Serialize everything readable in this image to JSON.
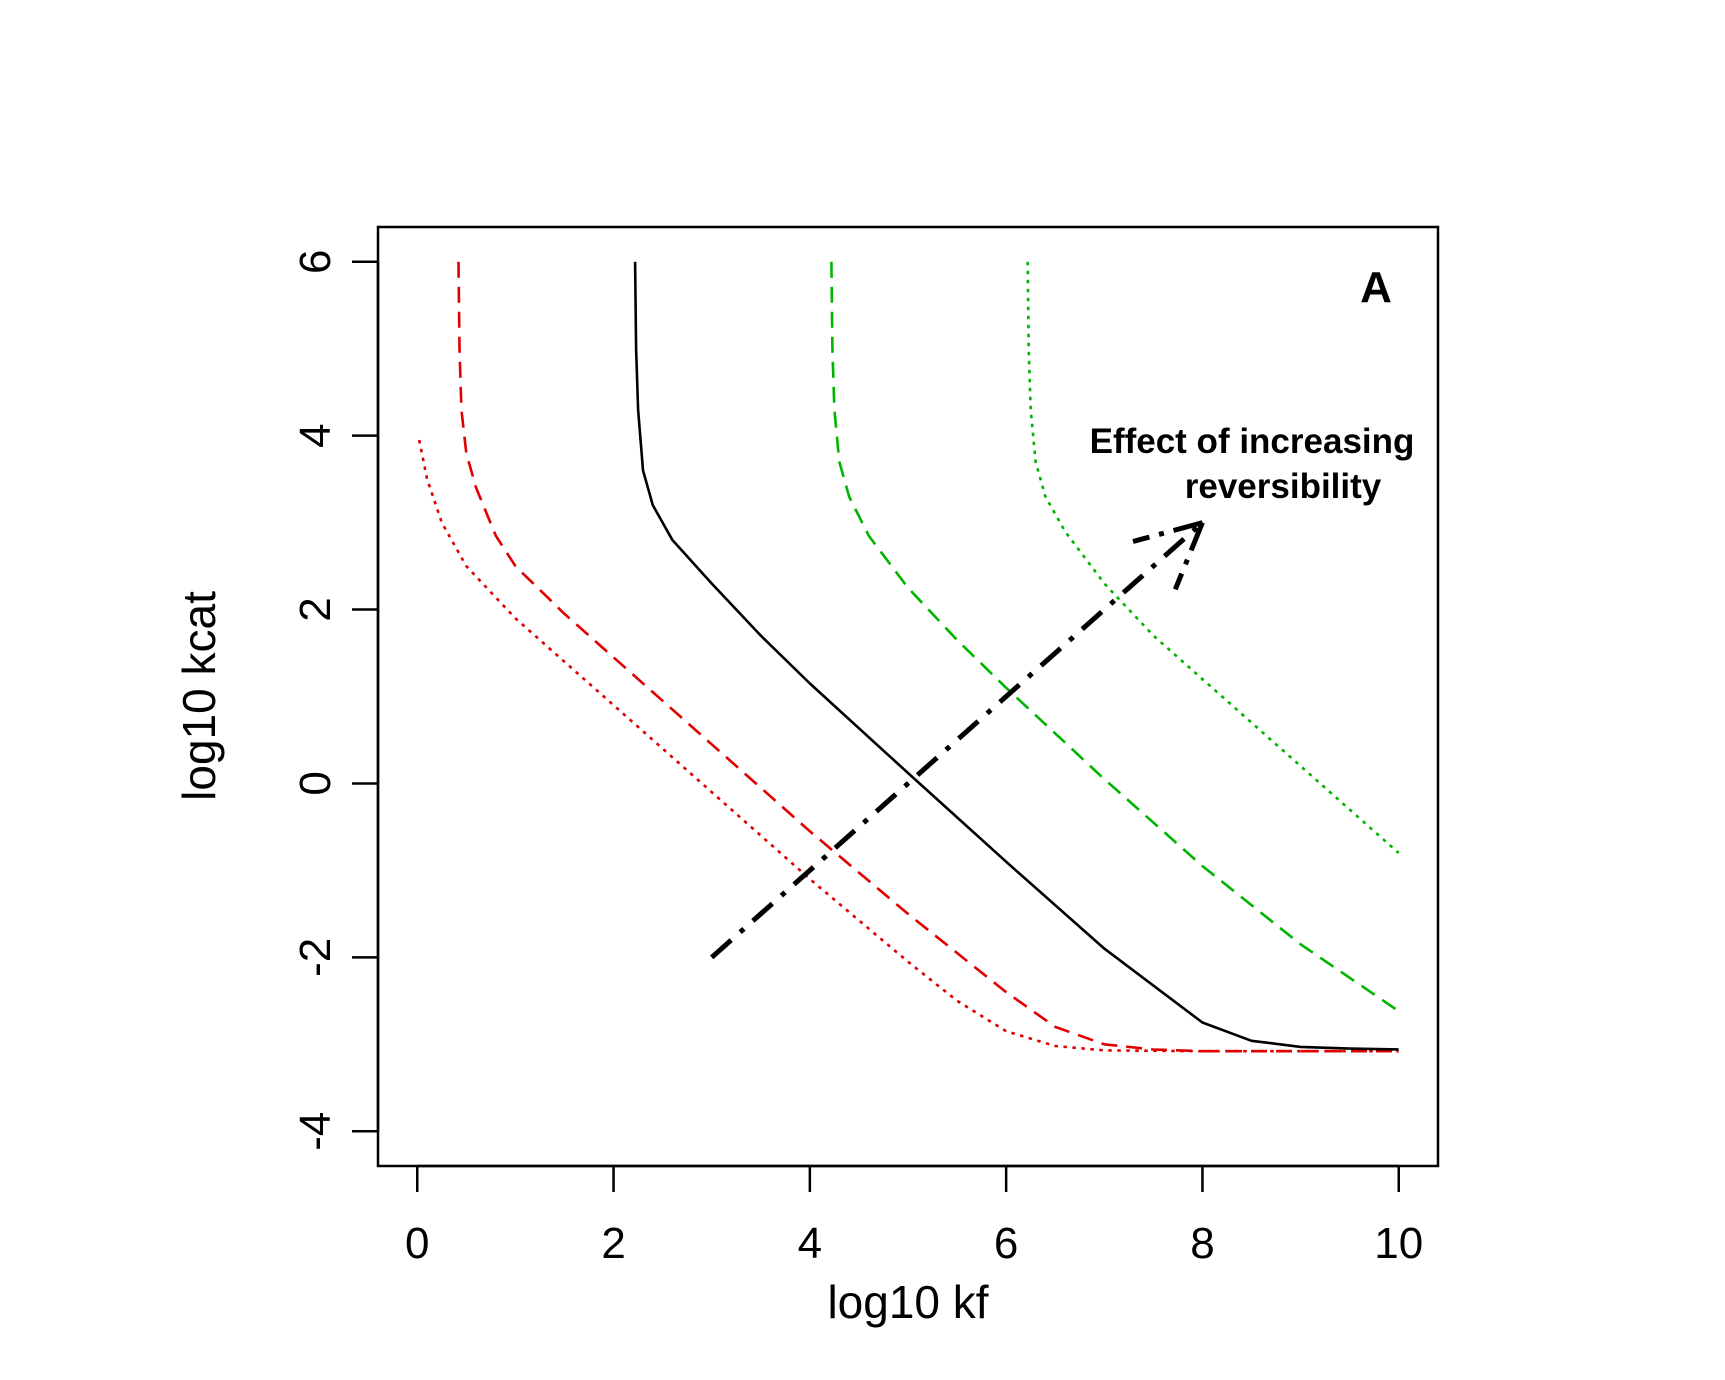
{
  "chart_data": {
    "type": "line",
    "xlabel": "log10 kf",
    "ylabel": "log10 kcat",
    "panel_label": "A",
    "annotation": [
      "Effect of increasing",
      "reversibility"
    ],
    "xlim": [
      -0.4,
      10.4
    ],
    "ylim": [
      -4.4,
      6.4
    ],
    "x_ticks": [
      0,
      2,
      4,
      6,
      8,
      10
    ],
    "y_ticks": [
      -4,
      -2,
      0,
      2,
      4,
      6
    ],
    "x_tick_labels": [
      "0",
      "2",
      "4",
      "6",
      "8",
      "10"
    ],
    "y_tick_labels": [
      "-4",
      "-2",
      "0",
      "2",
      "4",
      "6"
    ],
    "grid": false,
    "colors": {
      "red": "#e00000",
      "black": "#000000",
      "green": "#00b400"
    },
    "series": [
      {
        "color": "#e00000",
        "dash": "dotted",
        "x": [
          0.02,
          0.1,
          0.25,
          0.5,
          1.0,
          2.0,
          3.0,
          4.0,
          5.0,
          5.5,
          6.0,
          6.5,
          7.0,
          8.0,
          9.0,
          10.0
        ],
        "y": [
          3.95,
          3.5,
          3.0,
          2.5,
          1.9,
          0.9,
          -0.1,
          -1.1,
          -2.05,
          -2.5,
          -2.85,
          -3.02,
          -3.07,
          -3.08,
          -3.08,
          -3.08
        ]
      },
      {
        "color": "#e00000",
        "dash": "dashed",
        "x": [
          0.42,
          0.43,
          0.45,
          0.5,
          0.6,
          0.8,
          1.0,
          1.5,
          2.0,
          3.0,
          4.0,
          5.0,
          6.0,
          6.5,
          7.0,
          7.5,
          8.0,
          9.0,
          10.0
        ],
        "y": [
          6.0,
          5.0,
          4.3,
          3.8,
          3.4,
          2.85,
          2.5,
          1.95,
          1.45,
          0.45,
          -0.55,
          -1.5,
          -2.4,
          -2.8,
          -3.0,
          -3.06,
          -3.08,
          -3.08,
          -3.08
        ]
      },
      {
        "color": "#000000",
        "dash": "solid",
        "x": [
          2.22,
          2.23,
          2.25,
          2.3,
          2.4,
          2.6,
          3.0,
          3.5,
          4.0,
          5.0,
          6.0,
          7.0,
          8.0,
          8.5,
          9.0,
          9.5,
          10.0
        ],
        "y": [
          6.0,
          5.0,
          4.3,
          3.6,
          3.2,
          2.8,
          2.3,
          1.7,
          1.15,
          0.12,
          -0.9,
          -1.9,
          -2.75,
          -2.96,
          -3.03,
          -3.05,
          -3.06
        ]
      },
      {
        "color": "#00b400",
        "dash": "dashed",
        "x": [
          4.22,
          4.23,
          4.25,
          4.3,
          4.4,
          4.6,
          5.0,
          5.5,
          6.0,
          7.0,
          8.0,
          9.0,
          10.0
        ],
        "y": [
          6.0,
          5.0,
          4.3,
          3.7,
          3.3,
          2.85,
          2.25,
          1.65,
          1.1,
          0.05,
          -0.95,
          -1.85,
          -2.62
        ]
      },
      {
        "color": "#00b400",
        "dash": "dotted",
        "x": [
          6.22,
          6.23,
          6.25,
          6.3,
          6.4,
          6.6,
          7.0,
          7.5,
          8.0,
          9.0,
          10.0
        ],
        "y": [
          6.0,
          5.0,
          4.3,
          3.7,
          3.3,
          2.9,
          2.3,
          1.7,
          1.2,
          0.2,
          -0.8
        ]
      }
    ],
    "arrow": {
      "color": "#000000",
      "dash": "dashdot",
      "from": [
        3.0,
        -2.0
      ],
      "to": [
        8.0,
        3.0
      ]
    }
  }
}
